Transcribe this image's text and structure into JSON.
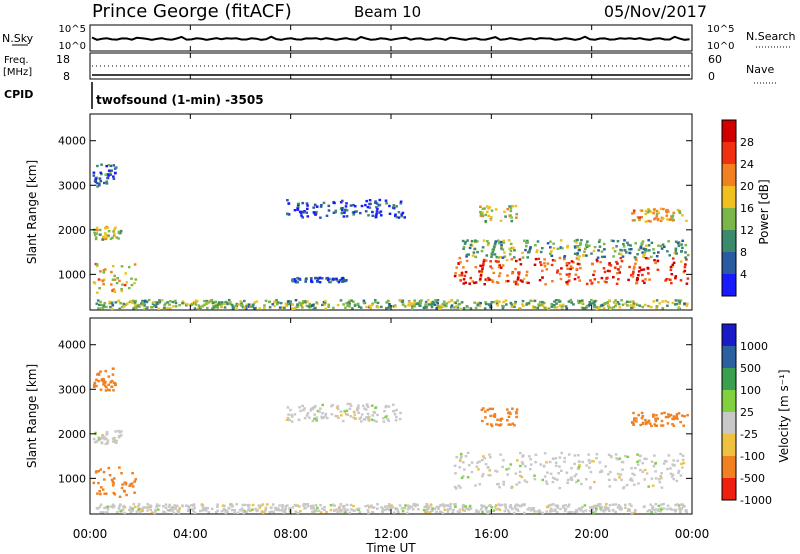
{
  "header": {
    "station": "Prince George (fitACF)",
    "beam": "Beam 10",
    "date": "05/Nov/2017"
  },
  "noise_panel": {
    "left_label": "N.Sky",
    "right_label": "N.Search",
    "left_ticks": [
      "10^5",
      "10^0"
    ],
    "right_ticks": [
      "10^5",
      "10^0"
    ]
  },
  "freq_panel": {
    "label_line1": "Freq.",
    "label_line2": "[MHz]",
    "right_label": "Nave",
    "left_ticks": [
      "18",
      "8"
    ],
    "right_ticks": [
      "60",
      "0"
    ]
  },
  "cpid_panel": {
    "label": "CPID",
    "program": "twofsound (1-min) -3505"
  },
  "x_axis": {
    "label": "Time UT",
    "ticks": [
      "00:00",
      "04:00",
      "08:00",
      "12:00",
      "16:00",
      "20:00",
      "00:00"
    ]
  },
  "chart_data": [
    {
      "type": "heatmap",
      "name": "power",
      "ylabel": "Slant Range [km]",
      "yticks": [
        "1000",
        "2000",
        "3000",
        "4000"
      ],
      "ylim": [
        200,
        4600
      ],
      "xlim_hours": [
        0,
        24
      ],
      "colorbar": {
        "label": "Power [dB]",
        "ticks": [
          "4",
          "8",
          "12",
          "16",
          "20",
          "24",
          "28"
        ],
        "colors": [
          "#1a1aff",
          "#2a5aa0",
          "#3c8a6e",
          "#7ab648",
          "#f0c020",
          "#f08020",
          "#f03010",
          "#d00000"
        ]
      },
      "regions": [
        {
          "t0": 0.1,
          "t1": 1.8,
          "r0": 600,
          "r1": 1300,
          "level": 0.6
        },
        {
          "t0": 0.1,
          "t1": 1.2,
          "r0": 1800,
          "r1": 2100,
          "level": 0.5
        },
        {
          "t0": 0.1,
          "t1": 1.0,
          "r0": 3000,
          "r1": 3500,
          "level": 0.2
        },
        {
          "t0": 7.8,
          "t1": 12.5,
          "r0": 2300,
          "r1": 2700,
          "level": 0.1
        },
        {
          "t0": 8.0,
          "t1": 10.2,
          "r0": 850,
          "r1": 950,
          "level": 0.1
        },
        {
          "t0": 14.5,
          "t1": 23.8,
          "r0": 800,
          "r1": 1400,
          "level": 0.85
        },
        {
          "t0": 14.8,
          "t1": 23.8,
          "r0": 1400,
          "r1": 1800,
          "level": 0.35
        },
        {
          "t0": 15.5,
          "t1": 17.0,
          "r0": 2200,
          "r1": 2600,
          "level": 0.5
        },
        {
          "t0": 21.5,
          "t1": 23.8,
          "r0": 2200,
          "r1": 2500,
          "level": 0.6
        },
        {
          "t0": 0.2,
          "t1": 23.8,
          "r0": 250,
          "r1": 450,
          "level": 0.4
        }
      ]
    },
    {
      "type": "heatmap",
      "name": "velocity",
      "ylabel": "Slant Range [km]",
      "yticks": [
        "1000",
        "2000",
        "3000",
        "4000"
      ],
      "ylim": [
        200,
        4600
      ],
      "xlim_hours": [
        0,
        24
      ],
      "colorbar": {
        "label": "Velocity [m s⁻¹]",
        "ticks": [
          "1000",
          "500",
          "100",
          "25",
          "-25",
          "-100",
          "-500",
          "-1000"
        ],
        "colors": [
          "#1a1ac8",
          "#2a60a0",
          "#3aa050",
          "#80d040",
          "#c8c8c8",
          "#f0c040",
          "#f08020",
          "#f02010"
        ]
      },
      "regions": [
        {
          "t0": 0.1,
          "t1": 1.8,
          "r0": 600,
          "r1": 1300,
          "vel": -200
        },
        {
          "t0": 0.1,
          "t1": 1.2,
          "r0": 1800,
          "r1": 2100,
          "vel": 0
        },
        {
          "t0": 0.1,
          "t1": 1.0,
          "r0": 3000,
          "r1": 3500,
          "vel": -300
        },
        {
          "t0": 7.8,
          "t1": 12.5,
          "r0": 2300,
          "r1": 2700,
          "vel": 0
        },
        {
          "t0": 14.5,
          "t1": 23.8,
          "r0": 800,
          "r1": 1600,
          "vel": 0
        },
        {
          "t0": 15.5,
          "t1": 17.0,
          "r0": 2200,
          "r1": 2600,
          "vel": -300
        },
        {
          "t0": 21.5,
          "t1": 23.8,
          "r0": 2200,
          "r1": 2500,
          "vel": -300
        },
        {
          "t0": 0.2,
          "t1": 23.8,
          "r0": 250,
          "r1": 450,
          "vel": 0
        }
      ]
    }
  ]
}
